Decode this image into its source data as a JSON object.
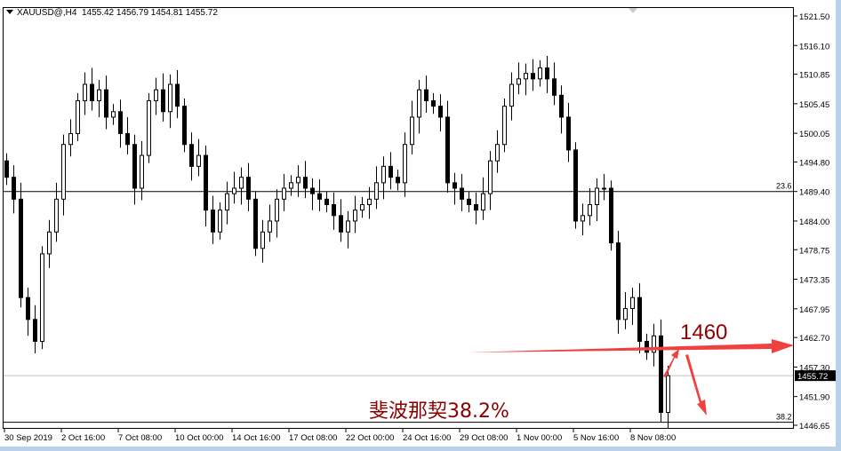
{
  "header": {
    "symbol": "XAUUSD@,H4",
    "ohlc_text": "1455.42 1456.79 1454.81 1455.72"
  },
  "colors": {
    "bull_body": "#ffffff",
    "bear_body": "#000000",
    "outline": "#000000",
    "annotation_red": "#f04040",
    "annotation_text": "#8b0000",
    "frame": "#b9d1ea"
  },
  "chart_data": {
    "type": "candlestick",
    "symbol": "XAUUSD@",
    "timeframe": "H4",
    "ylim": [
      1446.65,
      1521.5
    ],
    "y_ticks": [
      1521.5,
      1516.1,
      1510.85,
      1505.45,
      1500.05,
      1494.8,
      1489.4,
      1484.0,
      1478.75,
      1473.35,
      1467.95,
      1462.7,
      1457.3,
      1451.9,
      1446.65
    ],
    "x_tick_labels": [
      "30 Sep 2019",
      "2 Oct 16:00",
      "7 Oct 08:00",
      "10 Oct 00:00",
      "14 Oct 16:00",
      "17 Oct 08:00",
      "22 Oct 00:00",
      "24 Oct 16:00",
      "29 Oct 08:00",
      "1 Nov 00:00",
      "5 Nov 16:00",
      "8 Nov 08:00"
    ],
    "first_open": 1495,
    "closes": [
      1492,
      1488,
      1470,
      1466,
      1462,
      1478,
      1482,
      1488,
      1498,
      1500,
      1506,
      1509,
      1506,
      1508,
      1503,
      1504,
      1500,
      1498,
      1490,
      1496,
      1506,
      1508,
      1504,
      1509,
      1505,
      1498,
      1494,
      1496,
      1486,
      1482,
      1486,
      1489,
      1490,
      1492,
      1488,
      1479,
      1482,
      1484,
      1488,
      1490,
      1491,
      1492,
      1490,
      1489,
      1488,
      1487,
      1485,
      1482,
      1484,
      1486,
      1487,
      1488,
      1491,
      1494,
      1492,
      1491,
      1498,
      1503,
      1508,
      1506,
      1505,
      1503,
      1491,
      1490,
      1488,
      1487,
      1486,
      1489,
      1495,
      1498,
      1505,
      1509,
      1510,
      1511,
      1510,
      1512,
      1510,
      1507,
      1503,
      1497,
      1484,
      1485,
      1487,
      1490,
      1490,
      1480,
      1466,
      1468,
      1470,
      1462,
      1460,
      1463,
      1449,
      1455.72
    ],
    "current_price": {
      "value": 1455.72,
      "label": "1455.72"
    },
    "fib_levels": [
      {
        "value": 1489.4,
        "label": "23.6"
      },
      {
        "value": 1447.2,
        "label": "38.2"
      }
    ],
    "annotations": [
      {
        "text": "1460"
      },
      {
        "text": "斐波那契38.2%"
      }
    ]
  }
}
